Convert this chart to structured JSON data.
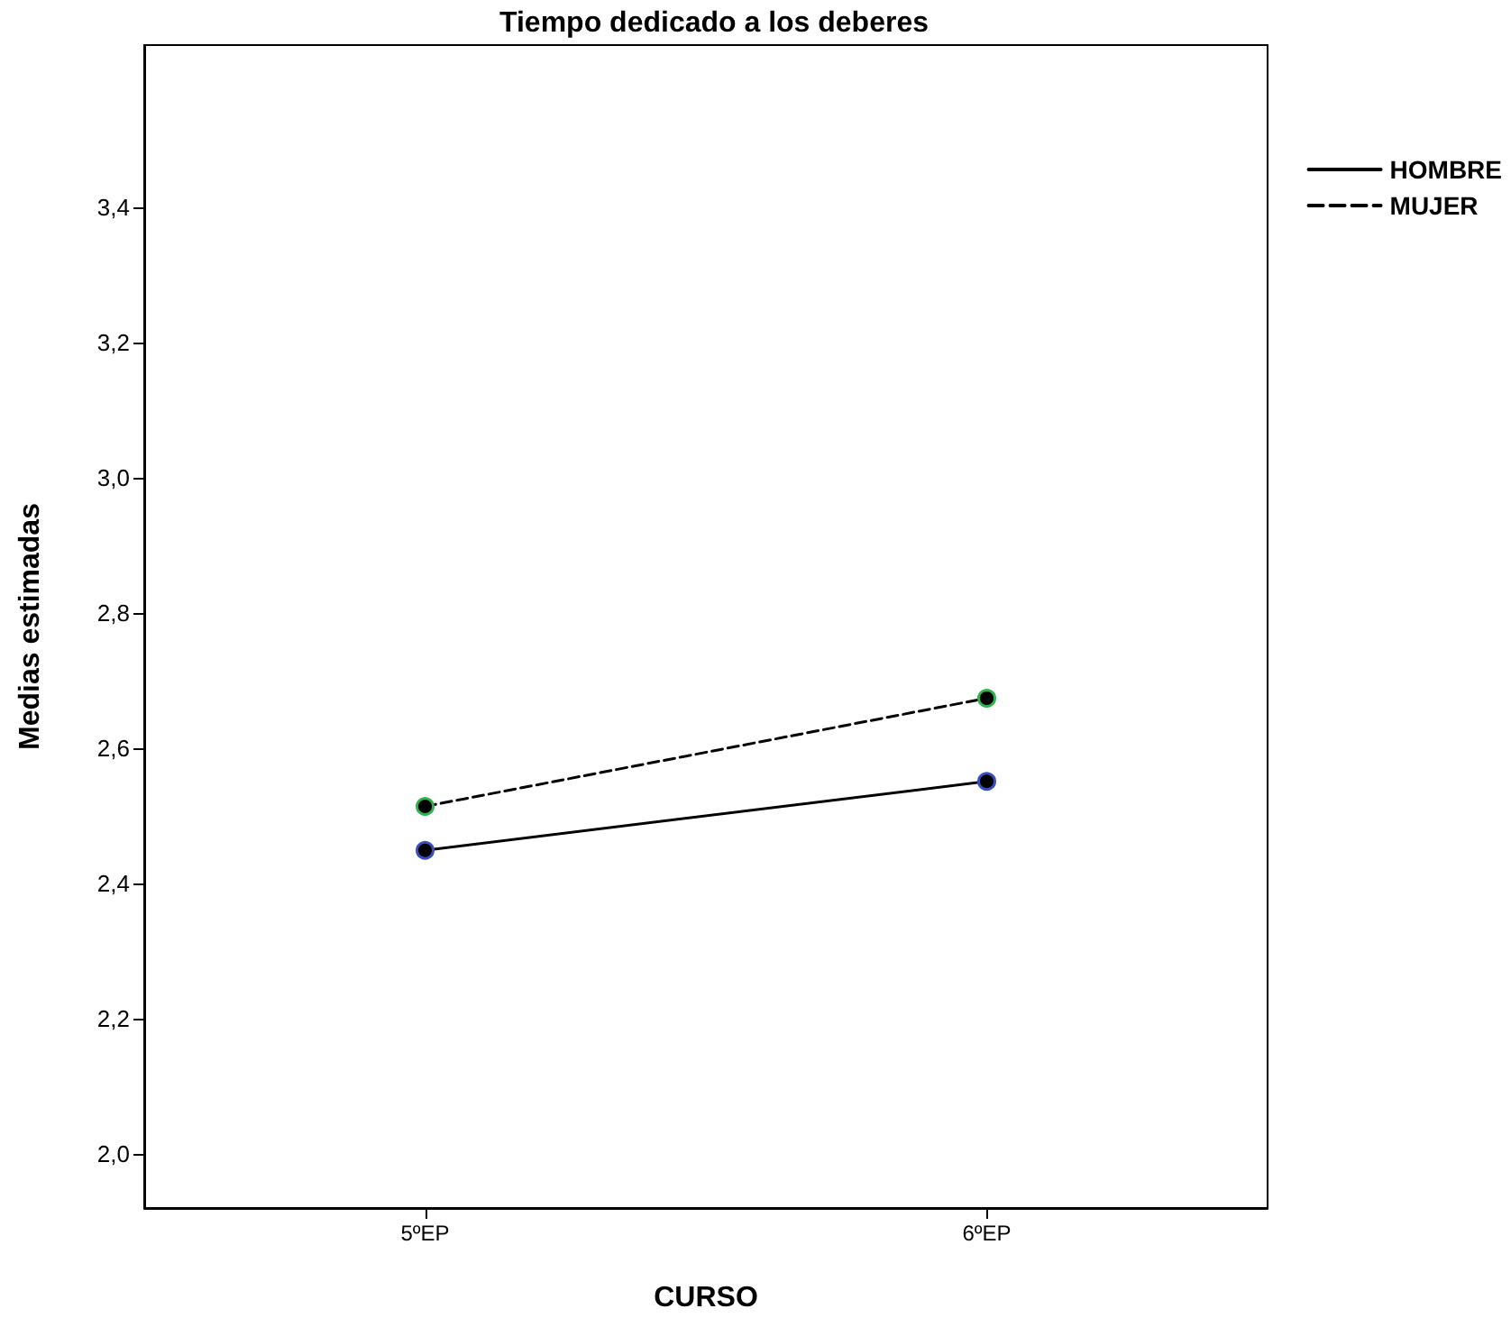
{
  "chart_data": {
    "type": "line",
    "title": "Tiempo dedicado a los deberes",
    "xlabel": "CURSO",
    "ylabel": "Medias estimadas",
    "categories": [
      "5ºEP",
      "6ºEP"
    ],
    "series": [
      {
        "name": "HOMBRE",
        "color": "#000000",
        "values": [
          2.449,
          2.551
        ],
        "line_style": "solid"
      },
      {
        "name": "MUJER",
        "color": "#000000",
        "values": [
          2.514,
          2.674
        ],
        "line_style": "dashed"
      }
    ],
    "ylim": [
      1.92,
      3.64
    ],
    "yticks": [
      {
        "value": 2.0,
        "label": "2,0"
      },
      {
        "value": 2.2,
        "label": "2,2"
      },
      {
        "value": 2.4,
        "label": "2,4"
      },
      {
        "value": 2.6,
        "label": "2,6"
      },
      {
        "value": 2.8,
        "label": "2,8"
      },
      {
        "value": 3.0,
        "label": "3,0"
      },
      {
        "value": 3.2,
        "label": "3,2"
      },
      {
        "value": 3.4,
        "label": "3,4"
      }
    ],
    "grid": false,
    "legend": "top right",
    "marker": "circle"
  }
}
